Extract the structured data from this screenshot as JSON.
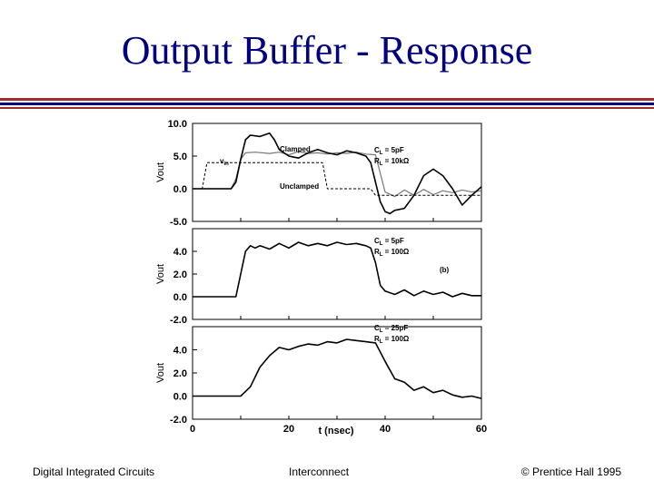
{
  "title": "Output Buffer - Response",
  "footer": {
    "left": "Digital Integrated Circuits",
    "center": "Interconnect",
    "right": "© Prentice Hall 1995"
  },
  "colors": {
    "title": "#000080",
    "rule_red": "#a52a2a",
    "rule_blue": "#000080",
    "trace": "#000000",
    "trace_light": "#777777"
  },
  "chart_data": [
    {
      "type": "line",
      "panel": "top",
      "ylabel": "Vout",
      "ylim": [
        -5,
        10
      ],
      "xlim": [
        0,
        60
      ],
      "yticks": [
        "10.0",
        "5.0",
        "0.0",
        "-5.0"
      ],
      "ytick_values": [
        10,
        5,
        0,
        -5
      ],
      "annotations": {
        "cap": "C",
        "cap_sub": "L",
        "cap_val": " = 5pF",
        "res": "R",
        "res_sub": "L",
        "res_val": " = 10kΩ"
      },
      "series": [
        {
          "name": "Clamped",
          "style": "solid-light",
          "x": [
            0,
            8,
            9,
            10,
            11,
            13,
            16,
            18,
            20,
            22,
            24,
            26,
            28,
            30,
            32,
            34,
            36,
            38,
            40,
            42,
            44,
            46,
            48,
            50,
            52,
            54,
            56,
            58,
            60
          ],
          "y": [
            0,
            0,
            1.5,
            4.5,
            5.5,
            5.6,
            5.4,
            5.6,
            5.2,
            5.7,
            5.4,
            5.5,
            5.3,
            5.5,
            5.4,
            5.6,
            5.3,
            5.2,
            -0.5,
            -1.2,
            -0.2,
            -1.0,
            -0.1,
            -0.9,
            -0.3,
            -0.6,
            -0.2,
            -0.5,
            -0.3
          ]
        },
        {
          "name": "Unclamped",
          "style": "solid",
          "x": [
            0,
            8,
            9,
            10,
            11,
            12,
            14,
            16,
            17,
            18,
            20,
            22,
            24,
            26,
            28,
            30,
            32,
            34,
            36,
            37,
            38,
            39,
            40,
            41,
            42,
            44,
            46,
            48,
            50,
            52,
            54,
            56,
            58,
            60
          ],
          "y": [
            0,
            0,
            1,
            4.5,
            7.5,
            8.2,
            8,
            8.5,
            7.5,
            6,
            5,
            4.7,
            5.5,
            6,
            5.5,
            5.2,
            5.8,
            5.5,
            5,
            4,
            1,
            -2,
            -3.5,
            -3.8,
            -3.3,
            -3,
            -1,
            2,
            3,
            2,
            0,
            -2.5,
            -1,
            0.3
          ]
        },
        {
          "name": "v",
          "subscript": "in",
          "style": "dashed",
          "x": [
            0,
            2,
            3,
            5,
            27,
            28,
            37,
            38,
            60
          ],
          "y": [
            0,
            0,
            4,
            4,
            4,
            0,
            0,
            -1,
            -1
          ]
        }
      ]
    },
    {
      "type": "line",
      "panel": "middle",
      "ylabel": "Vout",
      "ylim": [
        -2,
        6
      ],
      "xlim": [
        0,
        60
      ],
      "yticks": [
        "4.0",
        "2.0",
        "0.0",
        "-2.0"
      ],
      "ytick_values": [
        4,
        2,
        0,
        -2
      ],
      "annotations": {
        "cap": "C",
        "cap_sub": "L",
        "cap_val": " = 5pF",
        "res": "R",
        "res_sub": "L",
        "res_val": " = 100Ω",
        "tag": "(b)"
      },
      "series": [
        {
          "style": "solid",
          "x": [
            0,
            9,
            10,
            11,
            12,
            13,
            14,
            16,
            18,
            20,
            22,
            24,
            26,
            28,
            30,
            32,
            34,
            36,
            37,
            38,
            39,
            40,
            42,
            44,
            46,
            48,
            50,
            52,
            54,
            56,
            58,
            60
          ],
          "y": [
            0,
            0,
            2,
            4,
            4.5,
            4.3,
            4.5,
            4.2,
            4.7,
            4.3,
            4.8,
            4.5,
            4.7,
            4.5,
            4.8,
            4.6,
            4.7,
            4.5,
            4.3,
            3,
            1,
            0.5,
            0.2,
            0.6,
            0.1,
            0.5,
            0.2,
            0.4,
            0.0,
            0.3,
            0.1,
            0.1
          ]
        }
      ]
    },
    {
      "type": "line",
      "panel": "bottom",
      "ylabel": "Vout",
      "xlabel": "t (nsec)",
      "ylim": [
        -2,
        6
      ],
      "xlim": [
        0,
        60
      ],
      "yticks": [
        "4.0",
        "2.0",
        "0.0",
        "-2.0"
      ],
      "ytick_values": [
        4,
        2,
        0,
        -2
      ],
      "xticks": [
        "0",
        "20",
        "40",
        "60"
      ],
      "xtick_values": [
        0,
        20,
        40,
        60
      ],
      "annotations": {
        "cap": "C",
        "cap_sub": "L",
        "cap_val": " = 25pF",
        "res": "R",
        "res_sub": "L",
        "res_val": " = 100Ω"
      },
      "series": [
        {
          "style": "solid",
          "x": [
            0,
            10,
            12,
            14,
            16,
            18,
            20,
            22,
            24,
            26,
            28,
            30,
            32,
            34,
            36,
            38,
            40,
            42,
            44,
            46,
            48,
            50,
            52,
            54,
            56,
            58,
            60
          ],
          "y": [
            0,
            0,
            0.8,
            2.5,
            3.5,
            4.2,
            4.0,
            4.3,
            4.5,
            4.4,
            4.7,
            4.6,
            4.9,
            4.8,
            4.7,
            4.6,
            3.0,
            1.5,
            1.2,
            0.5,
            0.8,
            0.3,
            0.5,
            0.1,
            -0.1,
            0.0,
            -0.2
          ]
        }
      ]
    }
  ]
}
